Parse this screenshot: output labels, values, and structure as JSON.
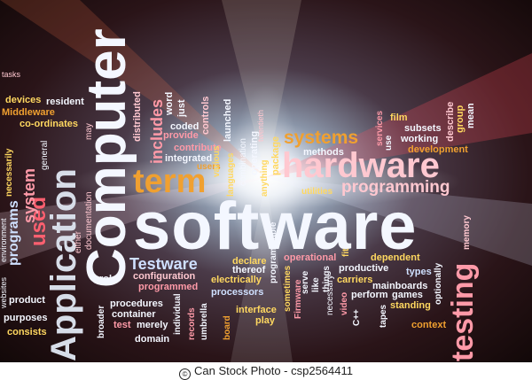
{
  "words": {
    "software": "software",
    "computer": "Computer",
    "application": "Application",
    "hardware": "hardware",
    "systems": "systems",
    "term": "term",
    "programming": "programming",
    "testing": "testing",
    "testware": "Testware",
    "used": "used",
    "programs": "programs",
    "system": "system",
    "includes": "includes",
    "tasks": "tasks",
    "devices": "devices",
    "resident": "resident",
    "middleware": "Middleware",
    "coordinates": "co-ordinates",
    "documentation": "documentation",
    "may": "may",
    "distributed": "distributed",
    "word": "word",
    "just": "just",
    "controls": "controls",
    "launched": "launched",
    "twentieth": "twentieth",
    "coded": "coded",
    "provide": "provide",
    "contribute": "contribute",
    "integrated": "integrated",
    "users": "users",
    "operating": "operating",
    "combination": "combination",
    "package": "package",
    "methods": "methods",
    "film": "film",
    "subsets": "subsets",
    "working": "working",
    "services": "services",
    "use": "use",
    "describe": "describe",
    "group": "group",
    "mean": "mean",
    "development": "development",
    "utilities": "utilities",
    "necessarily": "necessarily",
    "general": "general",
    "either": "either",
    "websites": "websites",
    "environment": "environment",
    "languages": "languages",
    "various": "various",
    "anything": "anything",
    "programmable": "programmable",
    "declare": "declare",
    "operational": "operational",
    "dependent": "dependent",
    "memory": "memory",
    "role": "role",
    "configuration": "configuration",
    "programmed": "programmed",
    "electrically": "electrically",
    "processors": "processors",
    "thereof": "thereof",
    "firmware": "Firmware",
    "sometimes": "sometimes",
    "like": "like",
    "things": "things",
    "necessary": "necessary",
    "productive": "productive",
    "carriers": "carriers",
    "mainboards": "mainboards",
    "games": "games",
    "types": "types",
    "optionally": "optionally",
    "standing": "standing",
    "fit": "fit",
    "perform": "perform",
    "video": "video",
    "cpp": "C++",
    "tapes": "tapes",
    "context": "context",
    "serve": "serve",
    "product": "product",
    "purposes": "purposes",
    "consists": "consists",
    "broader": "broader",
    "procedures": "procedures",
    "individual": "individual",
    "container": "container",
    "test": "test",
    "merely": "merely",
    "domain": "domain",
    "records": "records",
    "umbrella": "umbrella",
    "board": "board",
    "interface": "interface",
    "play": "play"
  },
  "colors": {
    "white": "#f4f7ff",
    "orange": "#f0a030",
    "pink": "#ff9aa8",
    "light_pink": "#ffc8d0",
    "light_blue": "#cfe0ff",
    "yellow": "#ffd860",
    "red": "#ff6070"
  },
  "footer": {
    "logo": "©",
    "text": "Can Stock Photo - csp2564411"
  }
}
